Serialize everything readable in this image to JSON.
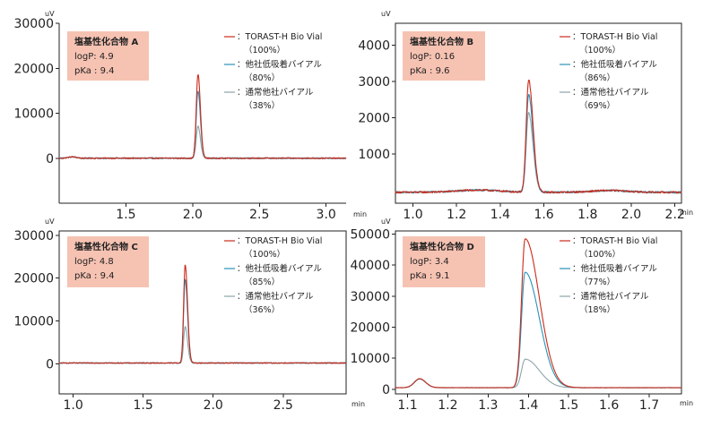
{
  "legend": {
    "series": [
      {
        "key": "torast",
        "label": "：TORAST-H Bio Vial",
        "color": "#cc2a1a"
      },
      {
        "key": "low",
        "label": "：他社低吸着バイアル",
        "color": "#2a93b8"
      },
      {
        "key": "std",
        "label": "：通常他社バイアル",
        "color": "#8ea4a8"
      }
    ]
  },
  "chart_data": [
    {
      "type": "line",
      "panel": "A",
      "compound": "塩基性化合物 A",
      "logP": "logP: 4.9",
      "pKa": "pKa : 9.4",
      "recoveries": [
        "（100%）",
        "（80%）",
        "（38%）"
      ],
      "ylabel": "uV",
      "xlabel": "min",
      "xlim": [
        1.0,
        3.15
      ],
      "ylim": [
        -10000,
        30000
      ],
      "xticks": [
        1.5,
        2.0,
        2.5,
        3.0
      ],
      "xtick_labels": [
        "1.5",
        "2.0",
        "2.5",
        "3.0"
      ],
      "yticks": [
        0,
        10000,
        20000,
        30000
      ],
      "ytick_labels": [
        "0",
        "10000",
        "20000",
        "30000"
      ],
      "peaks": [
        {
          "center": 2.04,
          "sigma": 0.013,
          "tail": 0.018,
          "heights": [
            18700,
            15000,
            7200
          ]
        }
      ],
      "baseline": {
        "offset": 0,
        "noise": 130,
        "bumps": [
          {
            "x": 1.1,
            "h": 300,
            "w": 0.03
          }
        ]
      }
    },
    {
      "type": "line",
      "panel": "B",
      "compound": "塩基性化合物 B",
      "logP": "logP: 0.16",
      "pKa": "pKa : 9.6",
      "recoveries": [
        "（100%）",
        "（86%）",
        "（69%）"
      ],
      "ylabel": "uV",
      "xlabel": "min",
      "xlim": [
        0.92,
        2.23
      ],
      "ylim": [
        -350,
        4600
      ],
      "xticks": [
        1.0,
        1.2,
        1.4,
        1.6,
        1.8,
        2.0,
        2.2
      ],
      "xtick_labels": [
        "1.0",
        "1.2",
        "1.4",
        "1.6",
        "1.8",
        "2.0",
        "2.2"
      ],
      "yticks": [
        1000,
        2000,
        3000,
        4000
      ],
      "ytick_labels": [
        "1000",
        "2000",
        "3000",
        "4000"
      ],
      "peaks": [
        {
          "center": 1.53,
          "sigma": 0.011,
          "tail": 0.02,
          "heights": [
            3080,
            2680,
            2180
          ]
        }
      ],
      "baseline": {
        "offset": -50,
        "noise": 25,
        "bumps": [
          {
            "x": 1.3,
            "h": 60,
            "w": 0.1
          },
          {
            "x": 1.9,
            "h": 50,
            "w": 0.08
          }
        ]
      }
    },
    {
      "type": "line",
      "panel": "C",
      "compound": "塩基性化合物 C",
      "logP": "logP: 4.8",
      "pKa": "pKa : 9.4",
      "recoveries": [
        "（100%）",
        "（85%）",
        "（36%）"
      ],
      "ylabel": "uV",
      "xlabel": "min",
      "xlim": [
        0.9,
        2.95
      ],
      "ylim": [
        -7000,
        31000
      ],
      "xticks": [
        1.0,
        1.5,
        2.0,
        2.5
      ],
      "xtick_labels": [
        "1.0",
        "1.5",
        "2.0",
        "2.5"
      ],
      "yticks": [
        0,
        10000,
        20000,
        30000
      ],
      "ytick_labels": [
        "0",
        "10000",
        "20000",
        "30000"
      ],
      "peaks": [
        {
          "center": 1.8,
          "sigma": 0.011,
          "tail": 0.017,
          "heights": [
            23000,
            19500,
            8500
          ]
        }
      ],
      "baseline": {
        "offset": 200,
        "noise": 110,
        "bumps": []
      }
    },
    {
      "type": "line",
      "panel": "D",
      "compound": "塩基性化合物 D",
      "logP": "logP: 3.4",
      "pKa": "pKa : 9.1",
      "recoveries": [
        "（100%）",
        "（77%）",
        "（18%）"
      ],
      "ylabel": "uV",
      "xlabel": "min",
      "xlim": [
        1.07,
        1.78
      ],
      "ylim": [
        -1500,
        51000
      ],
      "xticks": [
        1.1,
        1.2,
        1.3,
        1.4,
        1.5,
        1.6,
        1.7
      ],
      "xtick_labels": [
        "1.1",
        "1.2",
        "1.3",
        "1.4",
        "1.5",
        "1.6",
        "1.7"
      ],
      "yticks": [
        0,
        10000,
        20000,
        30000,
        40000,
        50000
      ],
      "ytick_labels": [
        "0",
        "10000",
        "20000",
        "30000",
        "40000",
        "50000"
      ],
      "peaks": [
        {
          "center": 1.392,
          "sigma": 0.009,
          "tail": 0.035,
          "heights": [
            48000,
            37200,
            9200
          ]
        },
        {
          "center": 1.13,
          "sigma": 0.013,
          "tail": 0.015,
          "heights": [
            2900,
            2800,
            2800
          ]
        }
      ],
      "baseline": {
        "offset": 500,
        "noise": 40,
        "bumps": []
      }
    }
  ]
}
